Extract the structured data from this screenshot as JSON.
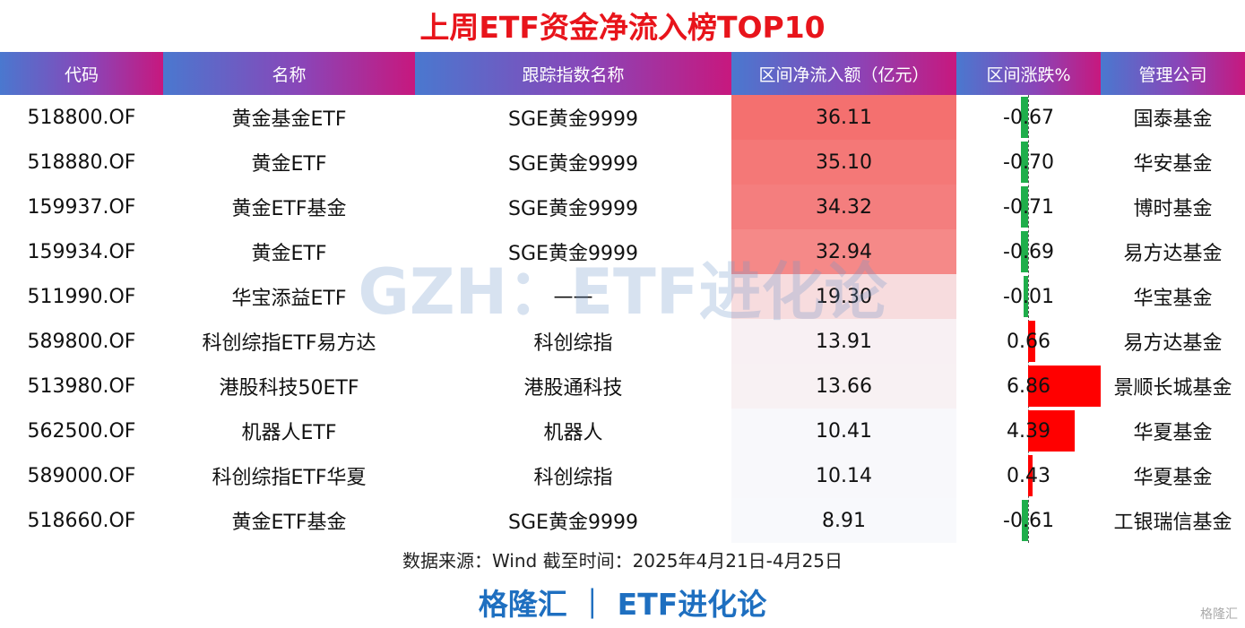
{
  "title": "上周ETF资金净流入榜TOP10",
  "table": {
    "header": [
      "代码",
      "名称",
      "跟踪指数名称",
      "区间净流入额（亿元）",
      "区间涨跌%",
      "管理公司"
    ],
    "rows": [
      [
        "518800.OF",
        "黄金基金ETF",
        "SGE黄金9999",
        "36.11",
        "-0.67",
        "国泰基金"
      ],
      [
        "518880.OF",
        "黄金ETF",
        "SGE黄金9999",
        "35.10",
        "-0.70",
        "华安基金"
      ],
      [
        "159937.OF",
        "黄金ETF基金",
        "SGE黄金9999",
        "34.32",
        "-0.71",
        "博时基金"
      ],
      [
        "159934.OF",
        "黄金ETF",
        "SGE黄金9999",
        "32.94",
        "-0.69",
        "易方达基金"
      ],
      [
        "511990.OF",
        "华宝添益ETF",
        "——",
        "19.30",
        "-0.01",
        "华宝基金"
      ],
      [
        "589800.OF",
        "科创综指ETF易方达",
        "科创综指",
        "13.91",
        "0.66",
        "易方达基金"
      ],
      [
        "513980.OF",
        "港股科技50ETF",
        "港股通科技",
        "13.66",
        "6.86",
        "景顺长城基金"
      ],
      [
        "562500.OF",
        "机器人ETF",
        "机器人",
        "10.41",
        "4.39",
        "华夏基金"
      ],
      [
        "589000.OF",
        "科创综指ETF华夏",
        "科创综指",
        "10.14",
        "0.43",
        "华夏基金"
      ],
      [
        "518660.OF",
        "黄金ETF基金",
        "SGE黄金9999",
        "8.91",
        "-0.61",
        "工银瑞信基金"
      ]
    ]
  },
  "source": "数据来源：Wind 截至时间：2025年4月21日-4月25日",
  "brand": "格隆汇 ｜ ETF进化论",
  "watermark": "GZH：ETF进化论",
  "logo": "格隆汇"
}
